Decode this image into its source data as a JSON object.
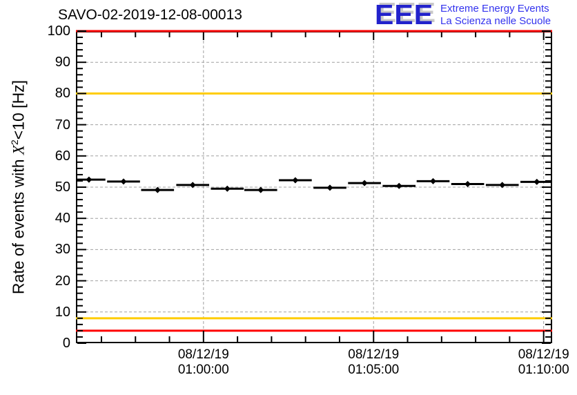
{
  "header": {
    "logo": {
      "acronym": "EEE",
      "line1": "Extreme Energy Events",
      "line2": "La Scienza nelle Scuole",
      "blue": "#2222cc",
      "text_blue": "#3333ee",
      "shadow_gray": "#c8c8c8"
    }
  },
  "colors": {
    "alarm_red": "#ff0000",
    "warning_orange": "#ffcc00",
    "grid_gray": "#a0a0a0",
    "marker_black": "#000000",
    "frame_black": "#000000"
  },
  "chart_data": {
    "type": "scatter",
    "title": "SAVO-02-2019-12-08-00013",
    "ylabel": "Rate of events with X^2<10 [Hz]",
    "ylabel_parts": {
      "prefix": "Rate of events with ",
      "x": "X",
      "sup": "2",
      "suffix": "<10 [Hz]"
    },
    "xlabel": "",
    "ylim": [
      0,
      100
    ],
    "y_ticks": [
      0,
      10,
      20,
      30,
      40,
      50,
      60,
      70,
      80,
      90,
      100
    ],
    "y_minor_step": 2,
    "x_axis": {
      "span_seconds": 840,
      "start_time_approx": "08/12/19 00:56:15",
      "minor_step_seconds": 60,
      "first_minor_offset_seconds": 45,
      "major_ticks": [
        {
          "t": 225,
          "line1": "08/12/19",
          "line2": "01:00:00"
        },
        {
          "t": 525,
          "line1": "08/12/19",
          "line2": "01:05:00"
        },
        {
          "t": 825,
          "line1": "08/12/19",
          "line2": "01:10:00"
        }
      ]
    },
    "grid": {
      "show": true,
      "style": "dashed"
    },
    "legend": {
      "show": false
    },
    "thresholds": [
      {
        "y": 100,
        "color": "#ff0000",
        "kind": "alarm-high"
      },
      {
        "y": 80,
        "color": "#ffcc00",
        "kind": "warning-high"
      },
      {
        "y": 8,
        "color": "#ffcc00",
        "kind": "warning-low"
      },
      {
        "y": 4,
        "color": "#ff0000",
        "kind": "alarm-low"
      }
    ],
    "series": [
      {
        "name": "rate",
        "marker": "diamond",
        "color": "#000000",
        "bin_halfwidth_seconds": 29,
        "y_error_hz": 0.8,
        "points": [
          {
            "t": 23,
            "time_est": "00:56:38",
            "y": 52.4
          },
          {
            "t": 84,
            "time_est": "00:57:39",
            "y": 51.8
          },
          {
            "t": 144,
            "time_est": "00:58:39",
            "y": 49.1
          },
          {
            "t": 206,
            "time_est": "00:59:41",
            "y": 50.7
          },
          {
            "t": 267,
            "time_est": "01:00:42",
            "y": 49.5
          },
          {
            "t": 326,
            "time_est": "01:01:41",
            "y": 49.1
          },
          {
            "t": 387,
            "time_est": "01:02:42",
            "y": 52.2
          },
          {
            "t": 448,
            "time_est": "01:03:43",
            "y": 49.8
          },
          {
            "t": 509,
            "time_est": "01:04:44",
            "y": 51.3
          },
          {
            "t": 570,
            "time_est": "01:05:45",
            "y": 50.4
          },
          {
            "t": 630,
            "time_est": "01:06:45",
            "y": 51.9
          },
          {
            "t": 691,
            "time_est": "01:07:46",
            "y": 51.0
          },
          {
            "t": 752,
            "time_est": "01:08:47",
            "y": 50.7
          },
          {
            "t": 813,
            "time_est": "01:09:48",
            "y": 51.7
          }
        ]
      }
    ]
  }
}
